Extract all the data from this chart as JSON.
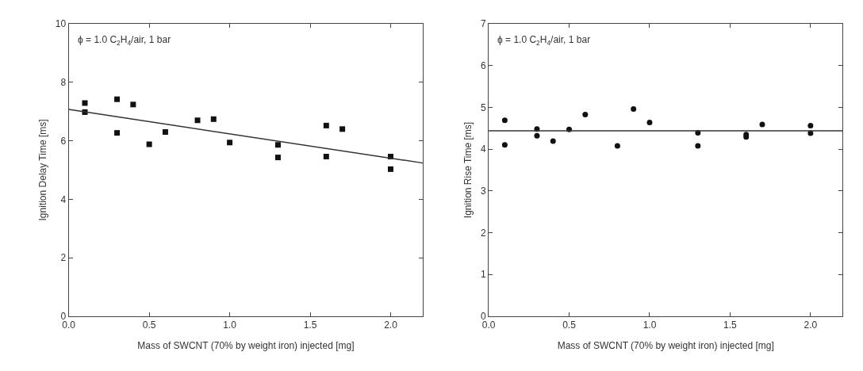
{
  "chart_data": [
    {
      "type": "scatter",
      "xlabel": "Mass of SWCNT (70% by weight iron) injected [mg]",
      "ylabel": "Ignition Delay Time [ms]",
      "annotations": [
        "ϕ = 1.0 C$_{2}$H$_{4}$/air, 1 bar"
      ],
      "xlim": [
        0,
        2.2
      ],
      "ylim": [
        0,
        10
      ],
      "xticks": [
        {
          "value": 0,
          "label": "0.0"
        },
        {
          "value": 0.5,
          "label": "0.5"
        },
        {
          "value": 1,
          "label": "1.0"
        },
        {
          "value": 1.5,
          "label": "1.5"
        },
        {
          "value": 2,
          "label": "2.0"
        }
      ],
      "yticks": [
        0,
        2,
        4,
        6,
        8,
        10
      ],
      "series": [
        {
          "marker": "square",
          "color": "#111111",
          "x": [
            0.1,
            0.1,
            0.3,
            0.3,
            0.4,
            0.5,
            0.6,
            0.8,
            0.9,
            1.0,
            1.3,
            1.3,
            1.6,
            1.6,
            1.7,
            2.0,
            2.0
          ],
          "values": [
            7.29,
            6.98,
            7.42,
            6.27,
            7.24,
            5.88,
            6.3,
            6.7,
            6.74,
            5.94,
            5.86,
            5.43,
            6.52,
            5.46,
            6.4,
            5.46,
            5.03
          ]
        },
        {
          "type": "line",
          "color": "#333333",
          "x": [
            0,
            2.2
          ],
          "values": [
            7.07,
            5.24
          ]
        }
      ]
    },
    {
      "type": "scatter",
      "xlabel": "Mass of SWCNT (70% by weight iron) injected [mg]",
      "ylabel": "Ignition Rise Time [ms]",
      "annotations": [
        "ϕ = 1.0 C$_{2}$H$_{4}$/air, 1 bar"
      ],
      "xlim": [
        0,
        2.2
      ],
      "ylim": [
        0,
        7
      ],
      "xticks": [
        {
          "value": 0,
          "label": "0.0"
        },
        {
          "value": 0.5,
          "label": "0.5"
        },
        {
          "value": 1,
          "label": "1.0"
        },
        {
          "value": 1.5,
          "label": "1.5"
        },
        {
          "value": 2,
          "label": "2.0"
        }
      ],
      "yticks": [
        0,
        1,
        2,
        3,
        4,
        5,
        6,
        7
      ],
      "series": [
        {
          "marker": "circle",
          "color": "#111111",
          "x": [
            0.1,
            0.1,
            0.3,
            0.3,
            0.4,
            0.5,
            0.6,
            0.8,
            0.9,
            1.0,
            1.3,
            1.3,
            1.6,
            1.6,
            1.7,
            2.0,
            2.0
          ],
          "values": [
            4.69,
            4.1,
            4.48,
            4.32,
            4.19,
            4.47,
            4.83,
            4.08,
            4.96,
            4.64,
            4.39,
            4.08,
            4.35,
            4.29,
            4.59,
            4.56,
            4.38
          ]
        },
        {
          "type": "line",
          "color": "#333333",
          "x": [
            0,
            2.2
          ],
          "values": [
            4.44,
            4.44
          ]
        }
      ]
    }
  ]
}
